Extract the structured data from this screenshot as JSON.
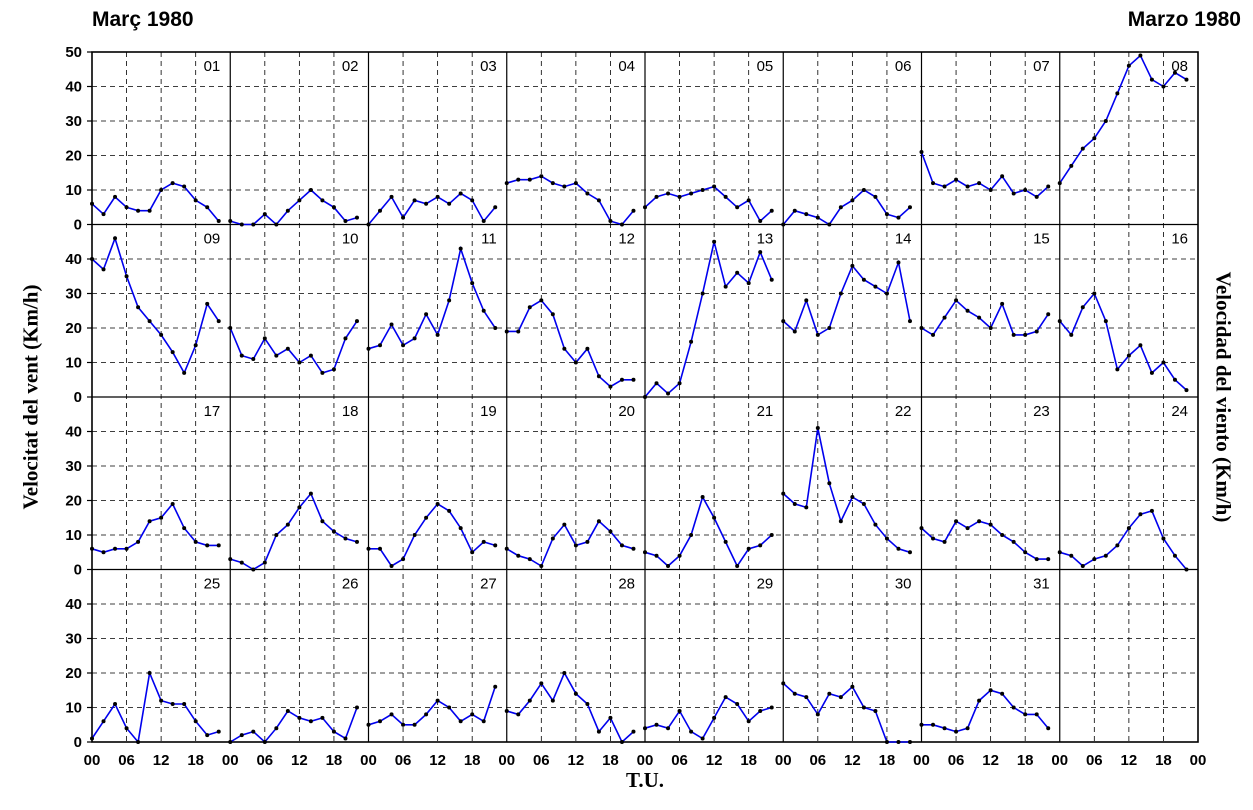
{
  "title_left": "Març 1980",
  "title_right": "Marzo 1980",
  "chart_data": {
    "type": "line",
    "title": "Març 1980 / Marzo 1980",
    "ylabel_left": "Velocitat del vent (Km/h)",
    "ylabel_right": "Velocidad del viento (Km/h)",
    "xlabel": "T.U.",
    "layout": "small-multiples, 4 rows x 8 days",
    "ylim": [
      0,
      50
    ],
    "yticks_top_row": [
      0,
      10,
      20,
      30,
      40,
      50
    ],
    "yticks_other_rows": [
      0,
      10,
      20,
      30,
      40
    ],
    "xticks": [
      "00",
      "06",
      "12",
      "18"
    ],
    "xtick_last": "00",
    "x_unit": "hours T.U. (0-24 per day)",
    "grid": true,
    "line_color": "#0000ee",
    "marker_color": "#000000",
    "series": [
      {
        "day": "01",
        "x": [
          0,
          2,
          4,
          6,
          8,
          10,
          12,
          14,
          16,
          18,
          20,
          22
        ],
        "y": [
          6,
          3,
          8,
          5,
          4,
          4,
          10,
          12,
          11,
          7,
          5,
          1
        ]
      },
      {
        "day": "02",
        "x": [
          0,
          2,
          4,
          6,
          8,
          10,
          12,
          14,
          16,
          18,
          20,
          22
        ],
        "y": [
          1,
          0,
          0,
          3,
          0,
          4,
          7,
          10,
          7,
          5,
          1,
          2
        ]
      },
      {
        "day": "03",
        "x": [
          0,
          2,
          4,
          6,
          8,
          10,
          12,
          14,
          16,
          18,
          20,
          22
        ],
        "y": [
          0,
          4,
          8,
          2,
          7,
          6,
          8,
          6,
          9,
          7,
          1,
          5
        ]
      },
      {
        "day": "04",
        "x": [
          0,
          2,
          4,
          6,
          8,
          10,
          12,
          14,
          16,
          18,
          20,
          22
        ],
        "y": [
          12,
          13,
          13,
          14,
          12,
          11,
          12,
          9,
          7,
          1,
          0,
          4
        ]
      },
      {
        "day": "05",
        "x": [
          0,
          2,
          4,
          6,
          8,
          10,
          12,
          14,
          16,
          18,
          20,
          22
        ],
        "y": [
          5,
          8,
          9,
          8,
          9,
          10,
          11,
          8,
          5,
          7,
          1,
          4
        ]
      },
      {
        "day": "06",
        "x": [
          0,
          2,
          4,
          6,
          8,
          10,
          12,
          14,
          16,
          18,
          20,
          22
        ],
        "y": [
          0,
          4,
          3,
          2,
          0,
          5,
          7,
          10,
          8,
          3,
          2,
          5
        ]
      },
      {
        "day": "07",
        "x": [
          0,
          2,
          4,
          6,
          8,
          10,
          12,
          14,
          16,
          18,
          20,
          22
        ],
        "y": [
          21,
          12,
          11,
          13,
          11,
          12,
          10,
          14,
          9,
          10,
          8,
          11
        ]
      },
      {
        "day": "08",
        "x": [
          0,
          2,
          4,
          6,
          8,
          10,
          12,
          14,
          16,
          18,
          20,
          22
        ],
        "y": [
          12,
          17,
          22,
          25,
          30,
          38,
          46,
          49,
          42,
          40,
          44,
          42
        ]
      },
      {
        "day": "09",
        "x": [
          0,
          2,
          4,
          6,
          8,
          10,
          12,
          14,
          16,
          18,
          20,
          22
        ],
        "y": [
          40,
          37,
          46,
          35,
          26,
          22,
          18,
          13,
          7,
          15,
          27,
          22
        ]
      },
      {
        "day": "10",
        "x": [
          0,
          2,
          4,
          6,
          8,
          10,
          12,
          14,
          16,
          18,
          20,
          22
        ],
        "y": [
          20,
          12,
          11,
          17,
          12,
          14,
          10,
          12,
          7,
          8,
          17,
          22
        ]
      },
      {
        "day": "11",
        "x": [
          0,
          2,
          4,
          6,
          8,
          10,
          12,
          14,
          16,
          18,
          20,
          22
        ],
        "y": [
          14,
          15,
          21,
          15,
          17,
          24,
          18,
          28,
          43,
          33,
          25,
          20
        ]
      },
      {
        "day": "12",
        "x": [
          0,
          2,
          4,
          6,
          8,
          10,
          12,
          14,
          16,
          18,
          20,
          22
        ],
        "y": [
          19,
          19,
          26,
          28,
          24,
          14,
          10,
          14,
          6,
          3,
          5,
          5
        ]
      },
      {
        "day": "13",
        "x": [
          0,
          2,
          4,
          6,
          8,
          10,
          12,
          14,
          16,
          18,
          20,
          22
        ],
        "y": [
          0,
          4,
          1,
          4,
          16,
          30,
          45,
          32,
          36,
          33,
          42,
          34
        ]
      },
      {
        "day": "14",
        "x": [
          0,
          2,
          4,
          6,
          8,
          10,
          12,
          14,
          16,
          18,
          20,
          22
        ],
        "y": [
          22,
          19,
          28,
          18,
          20,
          30,
          38,
          34,
          32,
          30,
          39,
          22
        ]
      },
      {
        "day": "15",
        "x": [
          0,
          2,
          4,
          6,
          8,
          10,
          12,
          14,
          16,
          18,
          20,
          22
        ],
        "y": [
          20,
          18,
          23,
          28,
          25,
          23,
          20,
          27,
          18,
          18,
          19,
          24
        ]
      },
      {
        "day": "16",
        "x": [
          0,
          2,
          4,
          6,
          8,
          10,
          12,
          14,
          16,
          18,
          20,
          22
        ],
        "y": [
          22,
          18,
          26,
          30,
          22,
          8,
          12,
          15,
          7,
          10,
          5,
          2
        ]
      },
      {
        "day": "17",
        "x": [
          0,
          2,
          4,
          6,
          8,
          10,
          12,
          14,
          16,
          18,
          20,
          22
        ],
        "y": [
          6,
          5,
          6,
          6,
          8,
          14,
          15,
          19,
          12,
          8,
          7,
          7
        ]
      },
      {
        "day": "18",
        "x": [
          0,
          2,
          4,
          6,
          8,
          10,
          12,
          14,
          16,
          18,
          20,
          22
        ],
        "y": [
          3,
          2,
          0,
          2,
          10,
          13,
          18,
          22,
          14,
          11,
          9,
          8
        ]
      },
      {
        "day": "19",
        "x": [
          0,
          2,
          4,
          6,
          8,
          10,
          12,
          14,
          16,
          18,
          20,
          22
        ],
        "y": [
          6,
          6,
          1,
          3,
          10,
          15,
          19,
          17,
          12,
          5,
          8,
          7
        ]
      },
      {
        "day": "20",
        "x": [
          0,
          2,
          4,
          6,
          8,
          10,
          12,
          14,
          16,
          18,
          20,
          22
        ],
        "y": [
          6,
          4,
          3,
          1,
          9,
          13,
          7,
          8,
          14,
          11,
          7,
          6
        ]
      },
      {
        "day": "21",
        "x": [
          0,
          2,
          4,
          6,
          8,
          10,
          12,
          14,
          16,
          18,
          20,
          22
        ],
        "y": [
          5,
          4,
          1,
          4,
          10,
          21,
          15,
          8,
          1,
          6,
          7,
          10
        ]
      },
      {
        "day": "22",
        "x": [
          0,
          2,
          4,
          6,
          8,
          10,
          12,
          14,
          16,
          18,
          20,
          22
        ],
        "y": [
          22,
          19,
          18,
          41,
          25,
          14,
          21,
          19,
          13,
          9,
          6,
          5
        ]
      },
      {
        "day": "23",
        "x": [
          0,
          2,
          4,
          6,
          8,
          10,
          12,
          14,
          16,
          18,
          20,
          22
        ],
        "y": [
          12,
          9,
          8,
          14,
          12,
          14,
          13,
          10,
          8,
          5,
          3,
          3
        ]
      },
      {
        "day": "24",
        "x": [
          0,
          2,
          4,
          6,
          8,
          10,
          12,
          14,
          16,
          18,
          20,
          22
        ],
        "y": [
          5,
          4,
          1,
          3,
          4,
          7,
          12,
          16,
          17,
          9,
          4,
          0
        ]
      },
      {
        "day": "25",
        "x": [
          0,
          2,
          4,
          6,
          8,
          10,
          12,
          14,
          16,
          18,
          20,
          22
        ],
        "y": [
          1,
          6,
          11,
          4,
          0,
          20,
          12,
          11,
          11,
          6,
          2,
          3
        ]
      },
      {
        "day": "26",
        "x": [
          0,
          2,
          4,
          6,
          8,
          10,
          12,
          14,
          16,
          18,
          20,
          22
        ],
        "y": [
          0,
          2,
          3,
          0,
          4,
          9,
          7,
          6,
          7,
          3,
          1,
          10
        ]
      },
      {
        "day": "27",
        "x": [
          0,
          2,
          4,
          6,
          8,
          10,
          12,
          14,
          16,
          18,
          20,
          22
        ],
        "y": [
          5,
          6,
          8,
          5,
          5,
          8,
          12,
          10,
          6,
          8,
          6,
          16
        ]
      },
      {
        "day": "28",
        "x": [
          0,
          2,
          4,
          6,
          8,
          10,
          12,
          14,
          16,
          18,
          20,
          22
        ],
        "y": [
          9,
          8,
          12,
          17,
          12,
          20,
          14,
          11,
          3,
          7,
          0,
          3
        ]
      },
      {
        "day": "29",
        "x": [
          0,
          2,
          4,
          6,
          8,
          10,
          12,
          14,
          16,
          18,
          20,
          22
        ],
        "y": [
          4,
          5,
          4,
          9,
          3,
          1,
          7,
          13,
          11,
          6,
          9,
          10
        ]
      },
      {
        "day": "30",
        "x": [
          0,
          2,
          4,
          6,
          8,
          10,
          12,
          14,
          16,
          18,
          20,
          22
        ],
        "y": [
          17,
          14,
          13,
          8,
          14,
          13,
          16,
          10,
          9,
          0,
          0,
          0
        ]
      },
      {
        "day": "31",
        "x": [
          0,
          2,
          4,
          6,
          8,
          10,
          12,
          14,
          16,
          18,
          20,
          22
        ],
        "y": [
          5,
          5,
          4,
          3,
          4,
          12,
          15,
          14,
          10,
          8,
          8,
          4
        ]
      }
    ]
  }
}
